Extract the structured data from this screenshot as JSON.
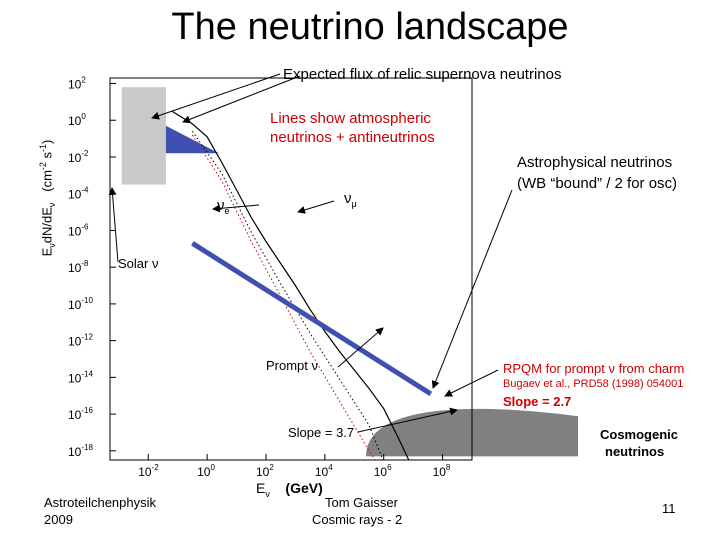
{
  "slide": {
    "title": "The neutrino landscape",
    "page_number": "11",
    "footer_left_1": "Astroteilchenphysik",
    "footer_left_2": "2009",
    "footer_center_1": "Tom Gaisser",
    "footer_center_2": "Cosmic rays - 2"
  },
  "chart_data": {
    "type": "line",
    "title": "",
    "xlabel": "E_ν (GeV)",
    "ylabel": "E_ν dN/dE_ν (cm^-2 s^-1)",
    "x_scale": "log",
    "y_scale": "log",
    "xlim_log10": [
      -3.3,
      9
    ],
    "ylim_log10": [
      -18.5,
      2.3
    ],
    "x_ticks": [
      {
        "base": "10",
        "exp": "-2",
        "value": -2
      },
      {
        "base": "10",
        "exp": "0",
        "value": 0
      },
      {
        "base": "10",
        "exp": "2",
        "value": 2
      },
      {
        "base": "10",
        "exp": "4",
        "value": 4
      },
      {
        "base": "10",
        "exp": "6",
        "value": 6
      },
      {
        "base": "10",
        "exp": "8",
        "value": 8
      }
    ],
    "y_ticks": [
      {
        "base": "10",
        "exp": "2",
        "value": 2
      },
      {
        "base": "10",
        "exp": "0",
        "value": 0
      },
      {
        "base": "10",
        "exp": "-2",
        "value": -2
      },
      {
        "base": "10",
        "exp": "-4",
        "value": -4
      },
      {
        "base": "10",
        "exp": "-6",
        "value": -6
      },
      {
        "base": "10",
        "exp": "-8",
        "value": -8
      },
      {
        "base": "10",
        "exp": "-10",
        "value": -10
      },
      {
        "base": "10",
        "exp": "-12",
        "value": -12
      },
      {
        "base": "10",
        "exp": "-14",
        "value": -14
      },
      {
        "base": "10",
        "exp": "-16",
        "value": -16
      },
      {
        "base": "10",
        "exp": "-18",
        "value": -18
      }
    ],
    "grid": false,
    "series": [
      {
        "style": "solid-black",
        "x": [
          -1.2,
          -0.5,
          0.0,
          0.5,
          1.0,
          1.5,
          2.0,
          2.5,
          3.0,
          3.5,
          4.0,
          4.5,
          5.0,
          5.5,
          6.0,
          6.5,
          7.0
        ],
        "y": [
          0.5,
          -0.2,
          -0.9,
          -2.3,
          -3.8,
          -5.3,
          -6.6,
          -7.8,
          -9.0,
          -10.3,
          -11.5,
          -12.6,
          -13.6,
          -14.6,
          -15.7,
          -17.3,
          -19.0
        ]
      },
      {
        "style": "dotted-black",
        "x": [
          -0.5,
          0.5,
          1.5,
          2.5,
          3.5,
          4.5,
          5.5,
          6.0
        ],
        "y": [
          -0.6,
          -2.9,
          -6.1,
          -8.9,
          -11.6,
          -14.1,
          -16.6,
          -18.6
        ]
      },
      {
        "style": "dotted-red",
        "x": [
          -0.5,
          0.5,
          1.5,
          2.5,
          3.5,
          4.5,
          5.5,
          6.0
        ],
        "y": [
          -0.8,
          -3.3,
          -6.6,
          -9.6,
          -12.6,
          -15.3,
          -18.0,
          -19.2
        ]
      },
      {
        "name": "Astrophysical neutrinos",
        "style": "thick-blue",
        "x": [
          -0.5,
          7.6
        ],
        "y": [
          -6.7,
          -14.9
        ]
      }
    ],
    "bands": {
      "solar": {
        "x": [
          -2.9,
          -1.4
        ],
        "y": [
          -3.5,
          1.8
        ]
      },
      "relic_supernova": {
        "x": [
          -1.4,
          0.4
        ],
        "y_top": -0.3,
        "y_bottom": -1.8
      },
      "cosmogenic": {
        "x": [
          5.4,
          9.0
        ],
        "y_peak": -15.9,
        "y_bottom": -18.3
      }
    },
    "annotations": {
      "relic": "Expected flux of relic supernova neutrinos",
      "atmo_1": "Lines show atmospheric",
      "atmo_2": "neutrinos + antineutrinos",
      "astro_1": "Astrophysical neutrinos",
      "astro_2": "(WB “bound” / 2 for osc)",
      "nu_e": "ν",
      "nu_e_sub": "e",
      "nu_mu": "ν",
      "nu_mu_sub": "μ",
      "solar": "Solar ν",
      "prompt": "Prompt ν",
      "rpqm": "RPQM for prompt ν from charm",
      "bugaev": "Bugaev et al., PRD58 (1998) 054001",
      "slope_27": "Slope = 2.7",
      "slope_37": "Slope = 3.7",
      "cosmo_1": "Cosmogenic",
      "cosmo_2": "neutrinos",
      "xlabel_e": "E",
      "xlabel_sub": "ν",
      "xlabel_unit": "(GeV)",
      "ylabel_1": "E",
      "ylabel_2": "dN/dE",
      "ylabel_sub": "ν",
      "ylabel_unit_a": "(cm",
      "ylabel_unit_b": "s",
      "ylabel_exp_a": "-2",
      "ylabel_exp_b": "-1",
      "ylabel_close": ")"
    },
    "colors": {
      "blue": "#4050b0",
      "red": "#cc0000",
      "gray_band": "#c9c9c9",
      "dark_gray": "#808080"
    }
  }
}
